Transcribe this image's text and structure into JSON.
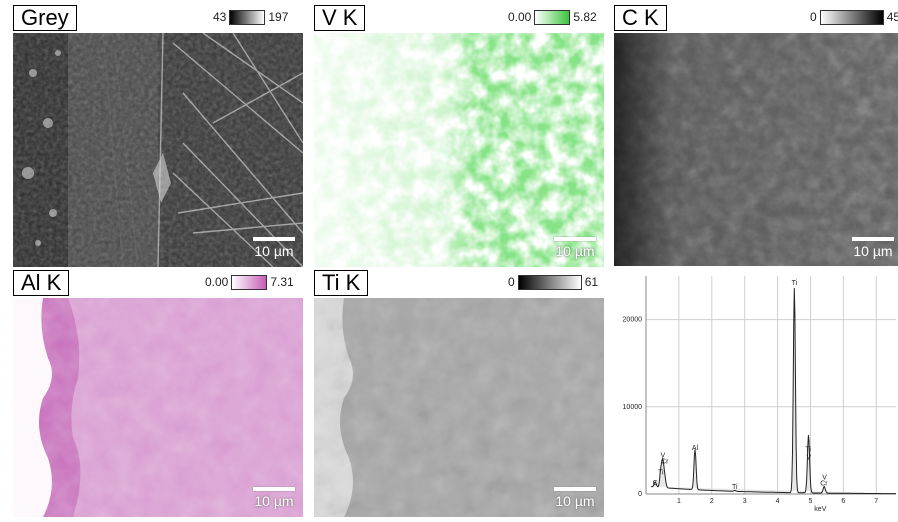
{
  "panels": [
    {
      "id": "grey",
      "title": "Grey",
      "scale_min": "43",
      "scale_max": "197",
      "scale_color": "#000000"
    },
    {
      "id": "v",
      "title": "V K",
      "scale_min": "0.00",
      "scale_max": "5.82",
      "scale_color": "#3cc43c"
    },
    {
      "id": "c",
      "title": "C K",
      "scale_min": "0",
      "scale_max": "45",
      "scale_color": "#000000"
    },
    {
      "id": "al",
      "title": "Al K",
      "scale_min": "0.00",
      "scale_max": "7.31",
      "scale_color": "#c55cb6"
    },
    {
      "id": "ti",
      "title": "Ti K",
      "scale_min": "0",
      "scale_max": "61",
      "scale_color": "#000000"
    }
  ],
  "scale_bar": "10 µm",
  "spectrum": {
    "y_ticks": [
      "20000",
      "10000",
      "0"
    ],
    "x_ticks": [
      "1",
      "2",
      "3",
      "4",
      "5",
      "6",
      "7"
    ],
    "x_unit": "keV",
    "peaks": [
      {
        "label": "Ti",
        "x": 0.45,
        "y": 1800
      },
      {
        "label": "V",
        "x": 0.51,
        "y": 2800
      },
      {
        "label": "Cr",
        "x": 0.57,
        "y": 1200
      },
      {
        "label": "C",
        "x": 0.28,
        "y": 600
      },
      {
        "label": "Al",
        "x": 1.49,
        "y": 4600
      },
      {
        "label": "Ti",
        "x": 2.7,
        "y": 100
      },
      {
        "label": "Ti",
        "x": 4.51,
        "y": 23500
      },
      {
        "label": "V",
        "x": 4.95,
        "y": 3500
      },
      {
        "label": "Ti",
        "x": 4.93,
        "y": 3500
      },
      {
        "label": "Cr",
        "x": 5.41,
        "y": 500
      },
      {
        "label": "V",
        "x": 5.43,
        "y": 300
      }
    ]
  }
}
